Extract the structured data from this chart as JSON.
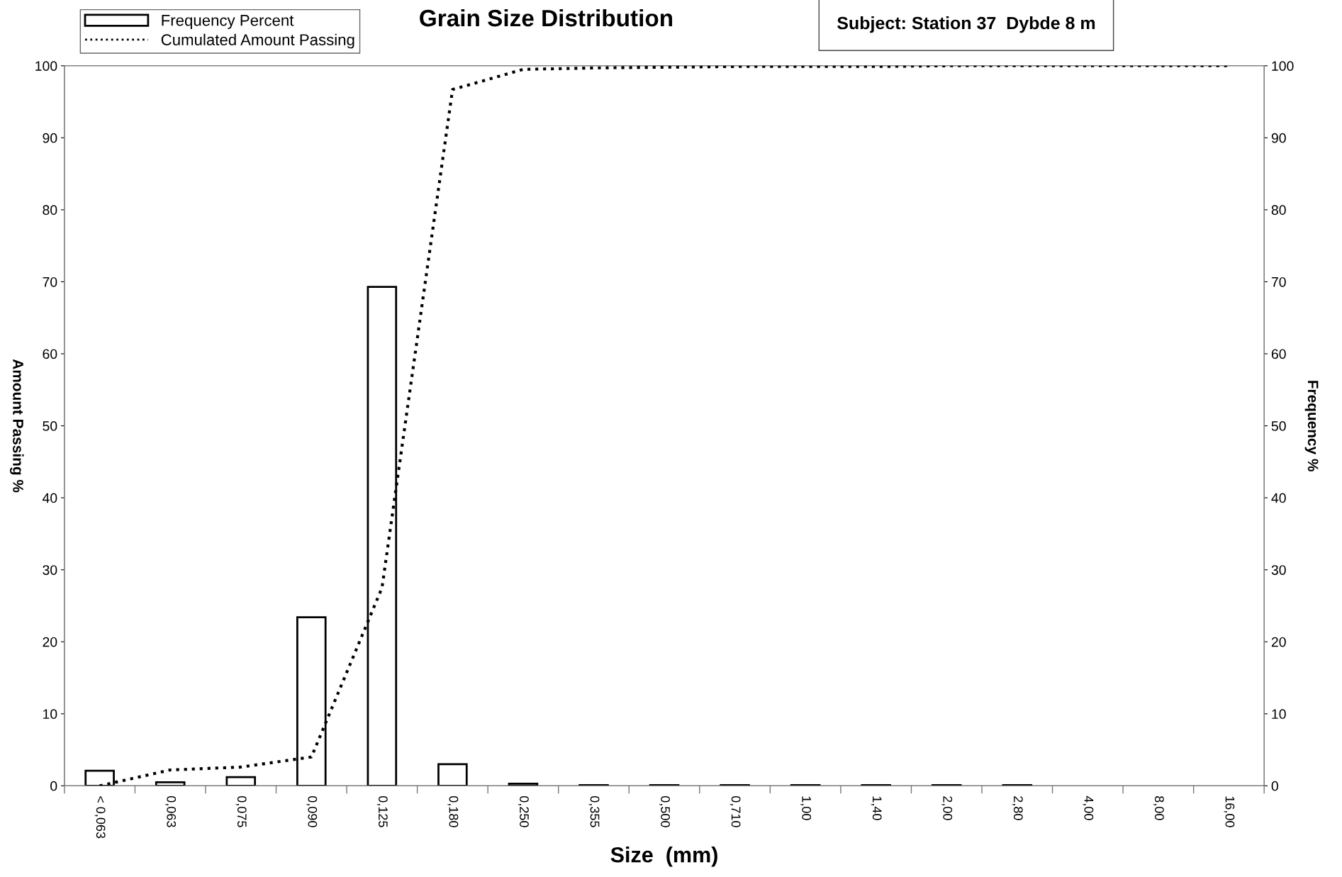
{
  "chart_data": {
    "type": "bar",
    "title": "Grain Size Distribution",
    "xlabel": "Size  (mm)",
    "ylabel": "Amount Passing %",
    "y2label": "Frequency %",
    "categories": [
      "< 0,063",
      "0,063",
      "0,075",
      "0,090",
      "0,125",
      "0,180",
      "0,250",
      "0,355",
      "0,500",
      "0,710",
      "1,00",
      "1,40",
      "2,00",
      "2,80",
      "4,00",
      "8,00",
      "16,00"
    ],
    "series": [
      {
        "name": "Frequency Percent",
        "axis": "y2",
        "color": "#ffffff",
        "values": [
          2.1,
          0.5,
          1.2,
          23.4,
          69.3,
          3.0,
          0.3,
          0.1,
          0.1,
          0.1,
          0.1,
          0.1,
          0.1,
          0.1,
          null,
          null,
          null
        ]
      },
      {
        "name": "Cumulated Amount Passing",
        "type": "line",
        "color": "#000000",
        "line_style": "dotted",
        "values": [
          0,
          2.2,
          2.6,
          4.0,
          27.5,
          96.7,
          99.5,
          99.7,
          99.8,
          99.9,
          99.9,
          99.9,
          100,
          100,
          100,
          100,
          100
        ]
      }
    ],
    "ylim": [
      0,
      100
    ],
    "yticks": [
      0,
      10,
      20,
      30,
      40,
      50,
      60,
      70,
      80,
      90,
      100
    ],
    "y2lim": [
      0,
      100
    ],
    "y2ticks": [
      0,
      10,
      20,
      30,
      40,
      50,
      60,
      70,
      80,
      90,
      100
    ],
    "grid": false,
    "legend": "top left",
    "annotations": [
      "Subject: Station 37  Dybde 8 m"
    ]
  }
}
